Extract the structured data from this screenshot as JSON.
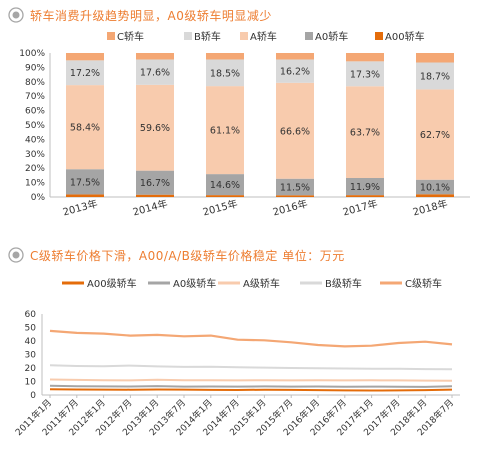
{
  "section1": {
    "title": "轿车消费升级趋势明显，A0级轿车明显减少"
  },
  "section2": {
    "title": "C级轿车价格下滑，A00/A/B级轿车价格稳定 单位：万元"
  },
  "colors": {
    "title": "#ED7D31",
    "icon": "#A6A6A6",
    "c_class": "#F4A774",
    "b_class": "#D9D9D9",
    "a_class": "#F8CBAD",
    "a0_class": "#A5A5A5",
    "a00_class": "#E46C0A"
  },
  "chart_data": [
    {
      "type": "bar",
      "stacked": true,
      "percent": true,
      "categories": [
        "2013年",
        "2014年",
        "2015年",
        "2016年",
        "2017年",
        "2018年"
      ],
      "series": [
        {
          "name": "C轿车",
          "values": [
            5.1,
            4.5,
            4.5,
            4.5,
            5.8,
            6.6
          ]
        },
        {
          "name": "B轿车",
          "values": [
            17.2,
            17.6,
            18.5,
            16.2,
            17.3,
            18.7
          ]
        },
        {
          "name": "A轿车",
          "values": [
            58.4,
            59.6,
            61.1,
            66.6,
            63.7,
            62.7
          ]
        },
        {
          "name": "A0轿车",
          "values": [
            17.5,
            16.7,
            14.6,
            11.5,
            11.9,
            10.1
          ]
        },
        {
          "name": "A00轿车",
          "values": [
            1.8,
            1.6,
            1.3,
            1.2,
            1.3,
            1.9
          ]
        }
      ],
      "data_labels": {
        "B轿车": [
          "17.2%",
          "17.6%",
          "18.5%",
          "16.2%",
          "17.3%",
          "18.7%"
        ],
        "A轿车": [
          "58.4%",
          "59.6%",
          "61.1%",
          "66.6%",
          "63.7%",
          "62.7%"
        ],
        "A0轿车": [
          "17.5%",
          "16.7%",
          "14.6%",
          "11.5%",
          "11.9%",
          "10.1%"
        ]
      },
      "yticks": [
        "0%",
        "10%",
        "20%",
        "30%",
        "40%",
        "50%",
        "60%",
        "70%",
        "80%",
        "90%",
        "100%"
      ],
      "ylim": [
        0,
        100
      ],
      "legend": "top",
      "grid": false
    },
    {
      "type": "line",
      "xticks": [
        "2011年1月",
        "2011年7月",
        "2012年1月",
        "2012年7月",
        "2013年1月",
        "2013年7月",
        "2014年1月",
        "2014年7月",
        "2015年1月",
        "2015年7月",
        "2016年1月",
        "2016年7月",
        "2017年1月",
        "2017年7月",
        "2018年1月",
        "2018年7月"
      ],
      "yticks": [
        "0",
        "10",
        "20",
        "30",
        "40",
        "50",
        "60"
      ],
      "ylim": [
        0,
        60
      ],
      "legend": "top",
      "grid": false,
      "series": [
        {
          "name": "A00级轿车",
          "values": [
            4.2,
            4.1,
            4.0,
            3.9,
            4.1,
            4.0,
            3.8,
            3.7,
            3.9,
            3.8,
            3.6,
            3.4,
            3.3,
            3.4,
            3.6,
            4.0
          ]
        },
        {
          "name": "A0级轿车",
          "values": [
            6.8,
            6.5,
            6.4,
            6.3,
            6.6,
            6.2,
            6.3,
            6.2,
            6.4,
            6.2,
            6.3,
            6.1,
            6.2,
            6.1,
            6.0,
            6.5
          ]
        },
        {
          "name": "A级轿车",
          "values": [
            11.5,
            11.2,
            11.0,
            10.8,
            11.3,
            11.0,
            10.9,
            10.8,
            11.0,
            10.8,
            10.9,
            10.8,
            10.9,
            10.8,
            10.7,
            10.6
          ]
        },
        {
          "name": "B级轿车",
          "values": [
            22.0,
            21.5,
            21.3,
            21.8,
            21.2,
            20.8,
            21.0,
            20.5,
            20.3,
            20.0,
            19.8,
            19.6,
            19.5,
            19.4,
            19.2,
            19.0
          ]
        },
        {
          "name": "C级轿车",
          "values": [
            47.5,
            46.0,
            45.5,
            44.0,
            44.5,
            43.5,
            44.0,
            41.0,
            40.5,
            39.0,
            37.0,
            36.0,
            36.5,
            38.5,
            39.5,
            37.5
          ]
        }
      ]
    }
  ]
}
